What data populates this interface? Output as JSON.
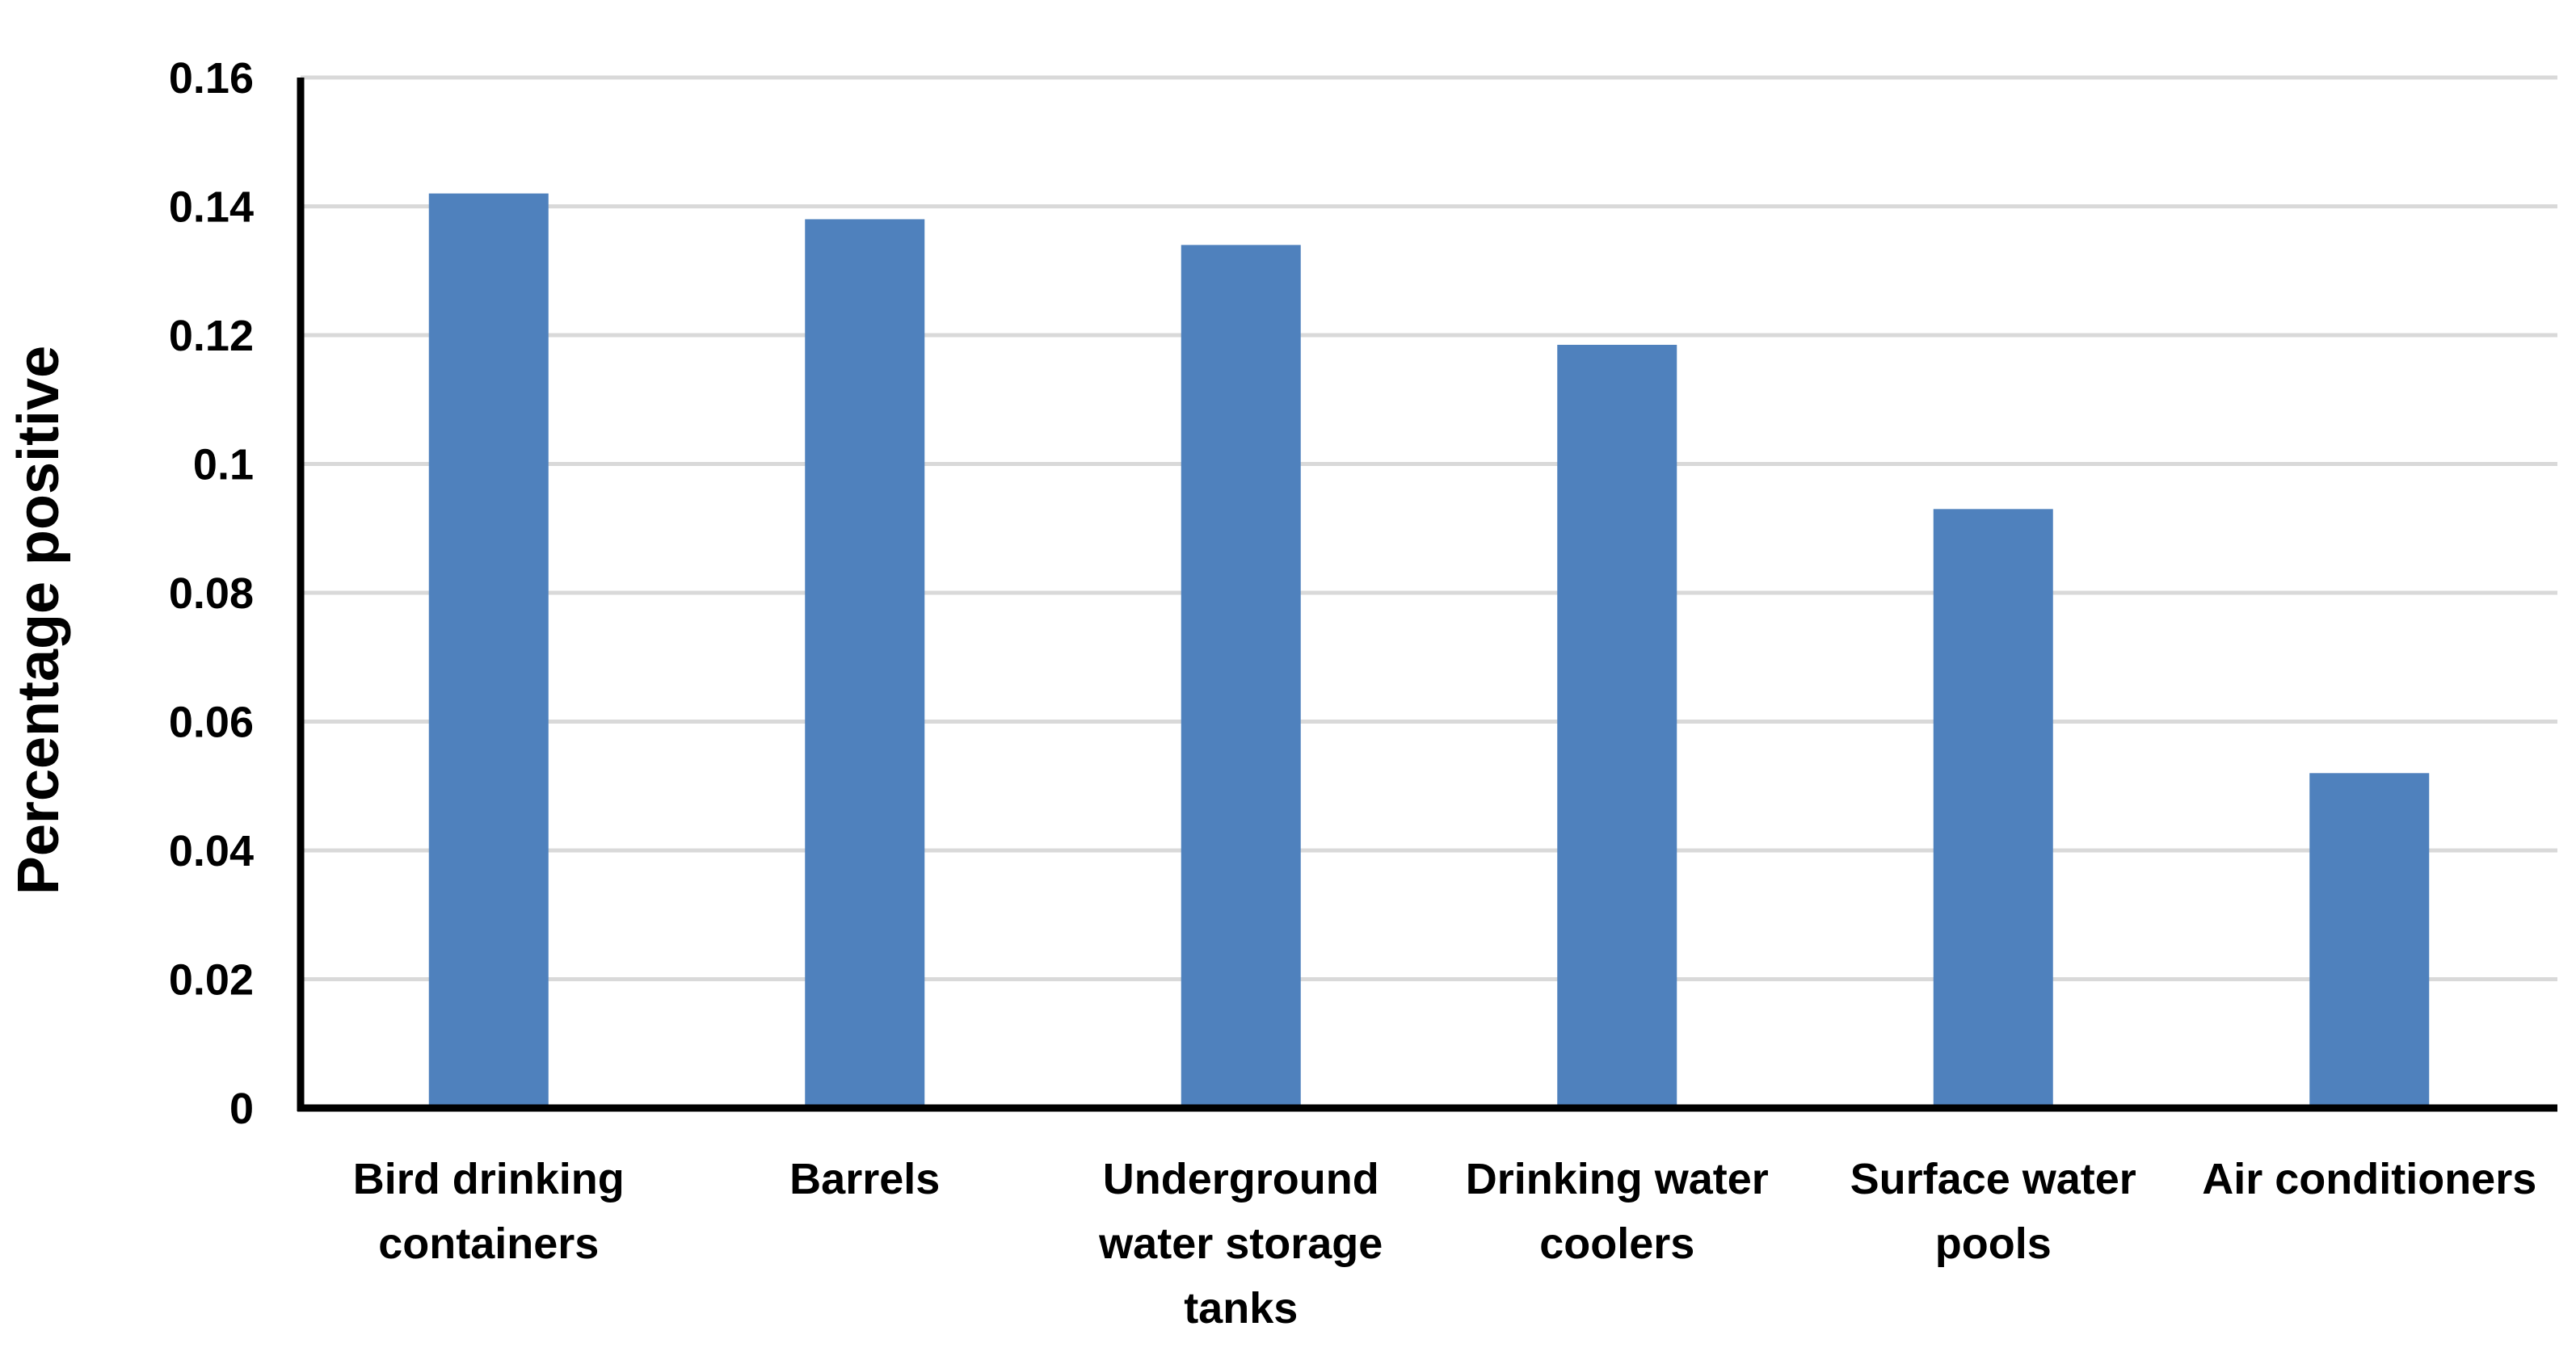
{
  "chart_data": {
    "type": "bar",
    "title": "",
    "xlabel": "",
    "ylabel": "Percentage positive",
    "categories": [
      [
        "Bird drinking",
        "containers"
      ],
      [
        "Barrels"
      ],
      [
        "Underground",
        "water storage",
        "tanks"
      ],
      [
        "Drinking water",
        "coolers"
      ],
      [
        "Surface water",
        "pools"
      ],
      [
        "Air conditioners"
      ]
    ],
    "values": [
      0.142,
      0.138,
      0.134,
      0.1185,
      0.093,
      0.052
    ],
    "ylim": [
      0,
      0.16
    ],
    "yticks": [
      0,
      0.02,
      0.04,
      0.06,
      0.08,
      0.1,
      0.12,
      0.14,
      0.16
    ],
    "ytick_labels": [
      "0",
      "0.02",
      "0.04",
      "0.06",
      "0.08",
      "0.1",
      "0.12",
      "0.14",
      "0.16"
    ],
    "grid": true,
    "legend": "none",
    "colors": {
      "bar": "#4f81bd",
      "grid": "#d9d9d9",
      "axis": "#000000"
    }
  }
}
